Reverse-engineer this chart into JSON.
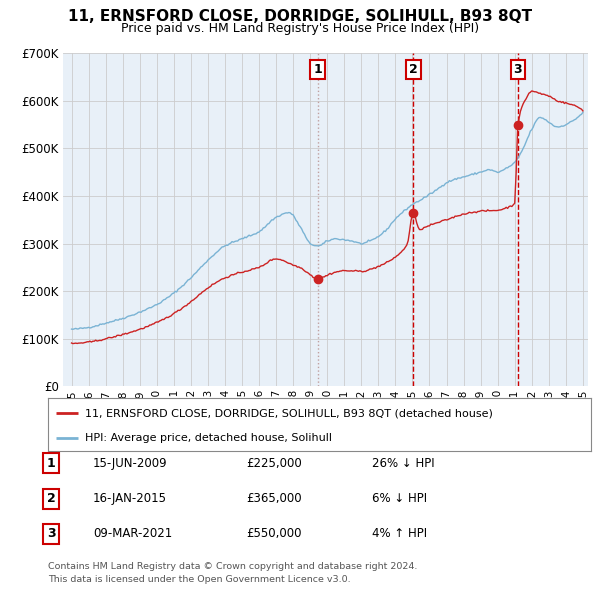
{
  "title": "11, ERNSFORD CLOSE, DORRIDGE, SOLIHULL, B93 8QT",
  "subtitle": "Price paid vs. HM Land Registry's House Price Index (HPI)",
  "hpi_label": "HPI: Average price, detached house, Solihull",
  "property_label": "11, ERNSFORD CLOSE, DORRIDGE, SOLIHULL, B93 8QT (detached house)",
  "footer_line1": "Contains HM Land Registry data © Crown copyright and database right 2024.",
  "footer_line2": "This data is licensed under the Open Government Licence v3.0.",
  "sale_markers": [
    {
      "num": 1,
      "date": "15-JUN-2009",
      "price": 225000,
      "hpi_diff": "26% ↓ HPI",
      "x": 2009.45,
      "vline_style": "dotted",
      "vline_color": "#c0a0a0"
    },
    {
      "num": 2,
      "date": "16-JAN-2015",
      "price": 365000,
      "hpi_diff": "6% ↓ HPI",
      "x": 2015.04,
      "vline_style": "dashed",
      "vline_color": "#cc0000"
    },
    {
      "num": 3,
      "date": "09-MAR-2021",
      "price": 550000,
      "hpi_diff": "4% ↑ HPI",
      "x": 2021.19,
      "vline_style": "dashed",
      "vline_color": "#cc0000"
    }
  ],
  "ylim": [
    0,
    700000
  ],
  "xlim_start": 1994.5,
  "xlim_end": 2025.3,
  "hpi_color": "#7ab3d4",
  "price_color": "#cc2222",
  "background_color": "#ffffff",
  "plot_bg_color": "#e8f0f8",
  "grid_color": "#cccccc",
  "marker_box_color": "#cc0000",
  "ytick_labels": [
    "£0",
    "£100K",
    "£200K",
    "£300K",
    "£400K",
    "£500K",
    "£600K",
    "£700K"
  ],
  "ytick_vals": [
    0,
    100000,
    200000,
    300000,
    400000,
    500000,
    600000,
    700000
  ]
}
